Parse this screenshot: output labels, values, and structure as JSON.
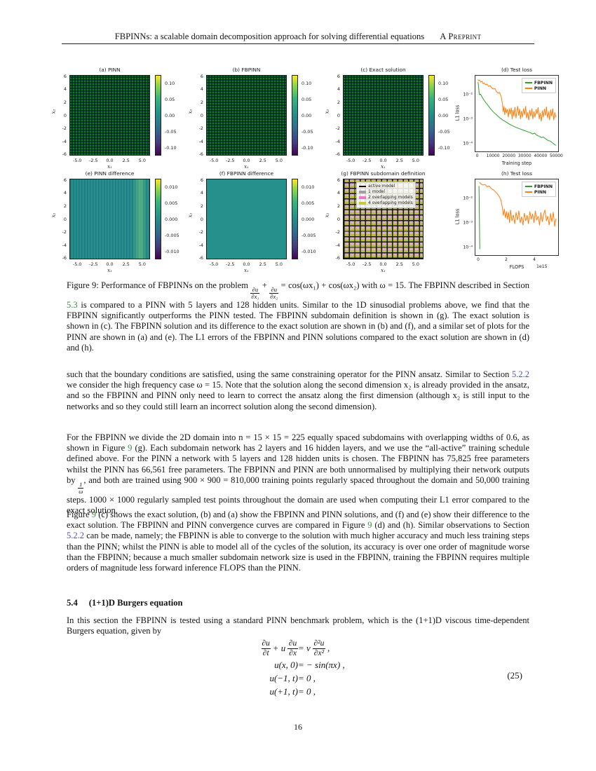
{
  "header": {
    "title": "FBPINNs: a scalable domain decomposition approach for solving differential equations",
    "tag": "A Preprint"
  },
  "figure": {
    "heat_axis": {
      "x_ticks": [
        "-5.0",
        "-2.5",
        "0.0",
        "2.5",
        "5.0"
      ],
      "y_ticks": [
        "6",
        "4",
        "2",
        "0",
        "-2",
        "-4",
        "-6"
      ],
      "xlabel": "x₁",
      "ylabel": "x₂"
    },
    "cb_row1": [
      "0.10",
      "0.05",
      "0.00",
      "-0.05",
      "-0.10"
    ],
    "cb_row2": [
      "0.010",
      "0.005",
      "0.000",
      "-0.005",
      "-0.010"
    ],
    "panels": {
      "a": "(a) PINN",
      "b": "(b) FBPINN",
      "c": "(c) Exact solution",
      "e": "(e) PINN difference",
      "f": "(f) FBPINN difference",
      "g": "(g) FBPINN subdomain definition"
    },
    "subdomain_legend": [
      "active model",
      "1 model",
      "2 overlapping models",
      "4 overlapping models"
    ],
    "subdomain_colors": {
      "active": "#111111",
      "one": "#a0a0a0",
      "two": "#e878c8",
      "four": "#c3c83c"
    }
  },
  "chart_data": [
    {
      "id": "d-test-loss",
      "type": "line",
      "title": "(d) Test loss",
      "xlabel": "Training step",
      "ylabel": "L1 loss",
      "x_range": [
        -1500,
        51500
      ],
      "y_range": [
        4.5e-05,
        0.065
      ],
      "y_scale": "log",
      "x_tick_labels": [
        "0",
        "10000",
        "20000",
        "30000",
        "40000",
        "50000"
      ],
      "y_tick_labels": [
        "10⁻²",
        "10⁻³",
        "10⁻⁴"
      ],
      "legend_position": "top-right",
      "series": [
        {
          "name": "FBPINN",
          "color": "#2ca02c",
          "points": [
            [
              100,
              0.035
            ],
            [
              300,
              0.032
            ],
            [
              600,
              0.02
            ],
            [
              900,
              0.013
            ],
            [
              1200,
              0.0105
            ],
            [
              1800,
              0.011
            ],
            [
              2500,
              0.009
            ],
            [
              3500,
              0.007
            ],
            [
              5000,
              0.005
            ],
            [
              6500,
              0.0038
            ],
            [
              8000,
              0.0028
            ],
            [
              10000,
              0.002
            ],
            [
              12000,
              0.0015
            ],
            [
              14000,
              0.00115
            ],
            [
              16000,
              0.00092
            ],
            [
              18000,
              0.00077
            ],
            [
              20000,
              0.00063
            ],
            [
              22500,
              0.00052
            ],
            [
              25000,
              0.00044
            ],
            [
              27500,
              0.00038
            ],
            [
              30000,
              0.00033
            ],
            [
              32500,
              0.00029
            ],
            [
              34000,
              0.00027
            ],
            [
              35000,
              0.00024
            ],
            [
              36500,
              0.00026
            ],
            [
              38000,
              0.00021
            ],
            [
              39500,
              0.00019
            ],
            [
              41000,
              0.00017
            ],
            [
              42000,
              0.00018
            ],
            [
              43500,
              0.00015
            ],
            [
              45000,
              0.00013
            ],
            [
              46500,
              0.00012
            ],
            [
              48000,
              0.0001
            ],
            [
              49000,
              9e-05
            ],
            [
              50000,
              8e-05
            ]
          ]
        },
        {
          "name": "PINN",
          "color": "#ff7f0e",
          "points": [
            [
              100,
              0.045
            ],
            [
              600,
              0.04
            ],
            [
              1200,
              0.042
            ],
            [
              2000,
              0.035
            ],
            [
              2800,
              0.038
            ],
            [
              3500,
              0.03
            ],
            [
              4200,
              0.032
            ],
            [
              5000,
              0.027
            ],
            [
              6000,
              0.029
            ],
            [
              7000,
              0.023
            ],
            [
              8000,
              0.025
            ],
            [
              9000,
              0.02
            ],
            [
              10000,
              0.018
            ],
            [
              11000,
              0.019
            ],
            [
              12000,
              0.014
            ],
            [
              13000,
              0.012
            ],
            [
              14000,
              0.013
            ],
            [
              15000,
              0.009
            ],
            [
              15800,
              0.0045
            ],
            [
              16300,
              0.002
            ],
            [
              16800,
              0.0035
            ],
            [
              17300,
              0.0015
            ],
            [
              17800,
              0.003
            ],
            [
              18400,
              0.0018
            ],
            [
              19000,
              0.0026
            ],
            [
              19600,
              0.0012
            ],
            [
              20200,
              0.0028
            ],
            [
              20800,
              0.0016
            ],
            [
              21500,
              0.003
            ],
            [
              22000,
              0.001
            ],
            [
              22600,
              0.0024
            ],
            [
              23200,
              0.0013
            ],
            [
              23800,
              0.0032
            ],
            [
              24500,
              0.0011
            ],
            [
              25000,
              0.002
            ],
            [
              25600,
              0.0035
            ],
            [
              26200,
              0.0014
            ],
            [
              26800,
              0.0027
            ],
            [
              27400,
              0.001
            ],
            [
              28000,
              0.0022
            ],
            [
              28700,
              0.0012
            ],
            [
              29300,
              0.0028
            ],
            [
              30000,
              0.0015
            ],
            [
              30700,
              0.0035
            ],
            [
              31300,
              0.0011
            ],
            [
              32000,
              0.0019
            ],
            [
              32700,
              0.0009
            ],
            [
              33300,
              0.0024
            ],
            [
              34000,
              0.0013
            ],
            [
              34700,
              0.0028
            ],
            [
              35300,
              0.001
            ],
            [
              36000,
              0.0021
            ],
            [
              36700,
              0.0012
            ],
            [
              37400,
              0.0026
            ],
            [
              38000,
              0.0016
            ],
            [
              38700,
              0.0031
            ],
            [
              39400,
              0.001
            ],
            [
              40000,
              0.0018
            ],
            [
              40700,
              0.0008
            ],
            [
              41400,
              0.0023
            ],
            [
              42000,
              0.0012
            ],
            [
              42700,
              0.0027
            ],
            [
              43400,
              0.0014
            ],
            [
              44000,
              0.0033
            ],
            [
              44700,
              0.0011
            ],
            [
              45400,
              0.0021
            ],
            [
              46000,
              0.0009
            ],
            [
              46700,
              0.0025
            ],
            [
              47400,
              0.0013
            ],
            [
              48000,
              0.0028
            ],
            [
              48700,
              0.0009
            ],
            [
              49400,
              0.0019
            ],
            [
              50000,
              0.0012
            ]
          ]
        }
      ]
    },
    {
      "id": "h-test-loss",
      "type": "line",
      "title": "(h) Test loss",
      "xlabel": "FLOPS",
      "ylabel": "L1 loss",
      "x_offset_label": "1e15",
      "x_range": [
        -0.25,
        5.75
      ],
      "y_range": [
        4.5e-05,
        0.065
      ],
      "y_scale": "log",
      "x_tick_labels": [
        "0",
        "2",
        "4"
      ],
      "y_tick_labels": [
        "10⁻²",
        "10⁻³",
        "10⁻⁴"
      ],
      "legend_position": "top-right",
      "series": [
        {
          "name": "FBPINN",
          "color": "#2ca02c",
          "points": [
            [
              0.01,
              0.035
            ],
            [
              0.02,
              0.018
            ],
            [
              0.03,
              0.007
            ],
            [
              0.04,
              0.002
            ],
            [
              0.05,
              0.0006
            ],
            [
              0.06,
              0.0002
            ],
            [
              0.07,
              8e-05
            ]
          ]
        },
        {
          "name": "PINN",
          "color": "#ff7f0e",
          "points": [
            [
              0.05,
              0.05
            ],
            [
              0.15,
              0.042
            ],
            [
              0.3,
              0.038
            ],
            [
              0.45,
              0.04
            ],
            [
              0.6,
              0.032
            ],
            [
              0.75,
              0.034
            ],
            [
              0.9,
              0.027
            ],
            [
              1.05,
              0.024
            ],
            [
              1.2,
              0.02
            ],
            [
              1.35,
              0.016
            ],
            [
              1.5,
              0.012
            ],
            [
              1.6,
              0.009
            ],
            [
              1.7,
              0.0045
            ],
            [
              1.78,
              0.002
            ],
            [
              1.85,
              0.0038
            ],
            [
              1.93,
              0.0016
            ],
            [
              2.0,
              0.003
            ],
            [
              2.08,
              0.0014
            ],
            [
              2.15,
              0.0028
            ],
            [
              2.23,
              0.001
            ],
            [
              2.3,
              0.0035
            ],
            [
              2.4,
              0.0012
            ],
            [
              2.5,
              0.0022
            ],
            [
              2.6,
              0.0009
            ],
            [
              2.7,
              0.0028
            ],
            [
              2.8,
              0.0013
            ],
            [
              2.9,
              0.0032
            ],
            [
              3.0,
              0.001
            ],
            [
              3.1,
              0.0018
            ],
            [
              3.2,
              0.0008
            ],
            [
              3.3,
              0.0026
            ],
            [
              3.4,
              0.0012
            ],
            [
              3.5,
              0.0021
            ],
            [
              3.6,
              0.0009
            ],
            [
              3.7,
              0.003
            ],
            [
              3.8,
              0.0014
            ],
            [
              3.9,
              0.0024
            ],
            [
              4.0,
              0.001
            ],
            [
              4.1,
              0.0032
            ],
            [
              4.2,
              0.0013
            ],
            [
              4.3,
              0.0019
            ],
            [
              4.4,
              0.0008
            ],
            [
              4.5,
              0.0027
            ],
            [
              4.6,
              0.0011
            ],
            [
              4.7,
              0.0023
            ],
            [
              4.8,
              0.0035
            ],
            [
              4.9,
              0.0012
            ],
            [
              5.0,
              0.0019
            ],
            [
              5.1,
              0.0008
            ],
            [
              5.2,
              0.0025
            ],
            [
              5.3,
              0.0011
            ],
            [
              5.4,
              0.0028
            ],
            [
              5.5,
              0.0007
            ],
            [
              5.6,
              0.0015
            ]
          ]
        }
      ]
    }
  ],
  "caption": {
    "seg1": "Figure 9: Performance of FBPINNs on the problem ",
    "f1n": "∂u",
    "f1d": "∂x₁",
    "op": " + ",
    "f2n": "∂u",
    "f2d": "∂x₂",
    "seg2": " = cos(ωx₁) + cos(ωx₂) with ω = 15. The FBPINN described in Section ",
    "link1": "5.3",
    "seg3": " is compared to a PINN with 5 layers and 128 hidden units. Similar to the 1D sinusodial problems above, we find that the FBPINN significantly outperforms the PINN tested. The FBPINN subdomain definition is shown in (g). The exact solution is shown in (c). The FBPINN solution and its difference to the exact solution are shown in (b) and (f), and a similar set of plots for the PINN are shown in (a) and (e). The L1 errors of the FBPINN and PINN solutions compared to the exact solution are shown in (d) and (h)."
  },
  "para1": {
    "seg1": "such that the boundary conditions are satisfied, using the same constraining operator for the PINN ansatz. Similar to Section ",
    "link1": "5.2.2",
    "seg2": " we consider the high frequency case ω = 15. Note that the solution along the second dimension x₂ is already provided in the ansatz, and so the FBPINN and PINN only need to learn to correct the ansatz along the first dimension (although x₂ is still input to the networks and so they could still learn an incorrect solution along the second dimension)."
  },
  "para2": {
    "seg1": "For the FBPINN we divide the 2D domain into n = 15 × 15 = 225 equally spaced subdomains with overlapping widths of 0.6, as shown in Figure ",
    "link1": "9",
    "seg2": " (g). Each subdomain network has 2 layers and 16 hidden layers, and we use the “all-active” training schedule defined above. For the PINN a network with 5 layers and 128 hidden units is chosen. The FBPINN has 75,825 free parameters whilst the PINN has 66,561 free parameters. The FBPINN and PINN are both unnormalised by multiplying their network outputs by ",
    "fn": "1",
    "fd": "ω",
    "seg3": ", and both are trained using 900 × 900 = 810,000 training points regularly spaced throughout the domain and 50,000 training steps. 1000 × 1000 regularly sampled test points throughout the domain are used when computing their L1 error compared to the exact solution."
  },
  "para3": {
    "seg1": "Figure ",
    "link1": "9",
    "seg2": " (c) shows the exact solution, (b) and (a) show the FBPINN and PINN solutions, and (f) and (e) show their difference to the exact solution. The FBPINN and PINN convergence curves are compared in Figure ",
    "link2": "9",
    "seg3": " (d) and (h). Similar observations to Section ",
    "link3": "5.2.2",
    "seg4": " can be made, namely; the FBPINN is able to converge to the solution with much higher accuracy and much less training steps than the PINN; whilst the PINN is able to model all of the cycles of the solution, its accuracy is over one order of magnitude worse than the FBPINN; because a much smaller subdomain network size is used in the FBPINN, training the FBPINN requires multiple orders of magnitude less forward inference FLOPS than the PINN."
  },
  "section": {
    "number": "5.4",
    "title": "(1+1)D Burgers equation"
  },
  "para4": "In this section the FBPINN is tested using a standard PINN benchmark problem, which is the (1+1)D viscous time-dependent Burgers equation, given by",
  "equation": {
    "number": "(25)",
    "line1": {
      "f1n": "∂u",
      "f1d": "∂t",
      "op1": "+ u",
      "f2n": "∂u",
      "f2d": "∂x",
      "eq": "= ν",
      "f3n": "∂²u",
      "f3d": "∂x²",
      "end": " ,"
    },
    "line2": {
      "lhs": "u(x, 0)",
      "rhs": "= − sin(πx) ,"
    },
    "line3": {
      "lhs": "u(−1, t)",
      "rhs": "= 0 ,"
    },
    "line4": {
      "lhs": "u(+1, t)",
      "rhs": "= 0 ,"
    }
  },
  "page_number": "16"
}
